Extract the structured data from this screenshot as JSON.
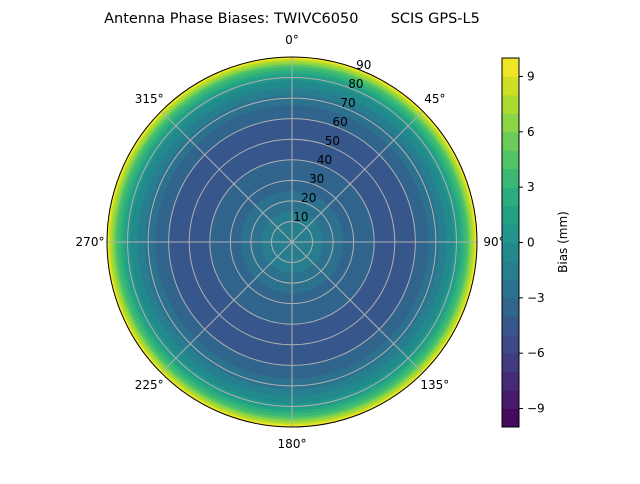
{
  "chart_data": {
    "type": "polar-contour",
    "title": "Antenna Phase Biases: TWIVC6050       SCIS GPS-L5",
    "angle_direction": "clockwise",
    "angle_zero": "top",
    "angle_ticks": [
      "0°",
      "45°",
      "90°",
      "135°",
      "180°",
      "225°",
      "270°",
      "315°"
    ],
    "angle_tick_values": [
      0,
      45,
      90,
      135,
      180,
      225,
      270,
      315
    ],
    "radial_ticks": [
      10,
      20,
      30,
      40,
      50,
      60,
      70,
      80,
      90
    ],
    "radial_range": [
      0,
      90
    ],
    "grid": true,
    "colormap": "viridis",
    "colorbar": {
      "label": "Bias (mm)",
      "range": [
        -10,
        10
      ],
      "level_step": 1,
      "ticks": [
        -9,
        -6,
        -3,
        0,
        3,
        6,
        9
      ],
      "tick_labels": [
        "−9",
        "−6",
        "−3",
        "0",
        "3",
        "6",
        "9"
      ],
      "placement": "right"
    },
    "radial_profile": {
      "zenith_deg": [
        0,
        10,
        20,
        30,
        40,
        50,
        60,
        70,
        80,
        85,
        90
      ],
      "bias_mm": [
        -1,
        -1.5,
        -2.5,
        -3.5,
        -4,
        -4.3,
        -4,
        -2.5,
        0.5,
        4,
        10
      ]
    }
  }
}
